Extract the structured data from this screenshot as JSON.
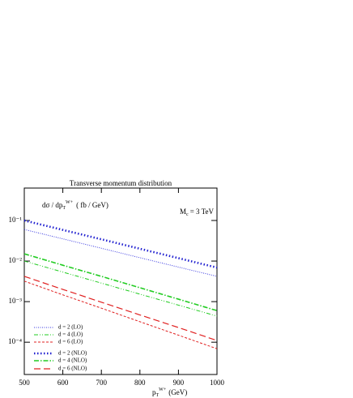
{
  "chart_data": {
    "type": "line",
    "title": "Transverse momentum distribution",
    "y_label": {
      "main": "dσ / dp",
      "sub": "T",
      "sup": "W+",
      "unit": "( fb / GeV)"
    },
    "x_label": {
      "main": "p",
      "sub": "T",
      "sup": "W+",
      "unit": "(GeV)"
    },
    "annotation": {
      "main": "M",
      "sub": "c",
      "rest": "= 3 TeV"
    },
    "x": [
      500,
      600,
      700,
      800,
      900,
      1000
    ],
    "xlim": [
      500,
      1000
    ],
    "xticks": [
      500,
      600,
      700,
      800,
      900,
      1000
    ],
    "ylim": [
      1.6e-05,
      0.63
    ],
    "yscale": "log",
    "yticks": [
      {
        "value": 0.1,
        "label": "10⁻¹"
      },
      {
        "value": 0.01,
        "label": "10⁻²"
      },
      {
        "value": 0.001,
        "label": "10⁻³"
      },
      {
        "value": 0.0001,
        "label": "10⁻⁴"
      }
    ],
    "legend": "lower left",
    "series": [
      {
        "name": "d = 2 (LO)",
        "color": "#3a3ae0",
        "dash": "1,1.5",
        "width": 1,
        "values": [
          0.06,
          0.0353,
          0.0207,
          0.0121,
          0.0071,
          0.0042
        ]
      },
      {
        "name": "d = 4 (LO)",
        "color": "#22cc22",
        "dash": "5,2,1,2,1,2",
        "width": 1,
        "values": [
          0.01,
          0.00535,
          0.00286,
          0.00153,
          0.00082,
          0.00044
        ]
      },
      {
        "name": "d = 6 (LO)",
        "color": "#e02020",
        "dash": "3,2",
        "width": 1,
        "values": [
          0.0032,
          0.00147,
          0.00069,
          0.00032,
          0.000149,
          6.9e-05
        ]
      },
      {
        "name": "d = 2 (NLO)",
        "color": "#2020d0",
        "dash": "1.5,2.5",
        "width": 2.6,
        "values": [
          0.1,
          0.0586,
          0.0344,
          0.0201,
          0.0118,
          0.0069
        ]
      },
      {
        "name": "d = 4 (NLO)",
        "color": "#22cc22",
        "dash": "6,2,1.5,2",
        "width": 1.6,
        "values": [
          0.0151,
          0.0079,
          0.0042,
          0.0022,
          0.00115,
          0.0006
        ]
      },
      {
        "name": "d = 6 (NLO)",
        "color": "#e02020",
        "dash": "8,4",
        "width": 1.2,
        "values": [
          0.0042,
          0.002,
          0.00097,
          0.00047,
          0.00023,
          0.00011
        ]
      }
    ]
  }
}
